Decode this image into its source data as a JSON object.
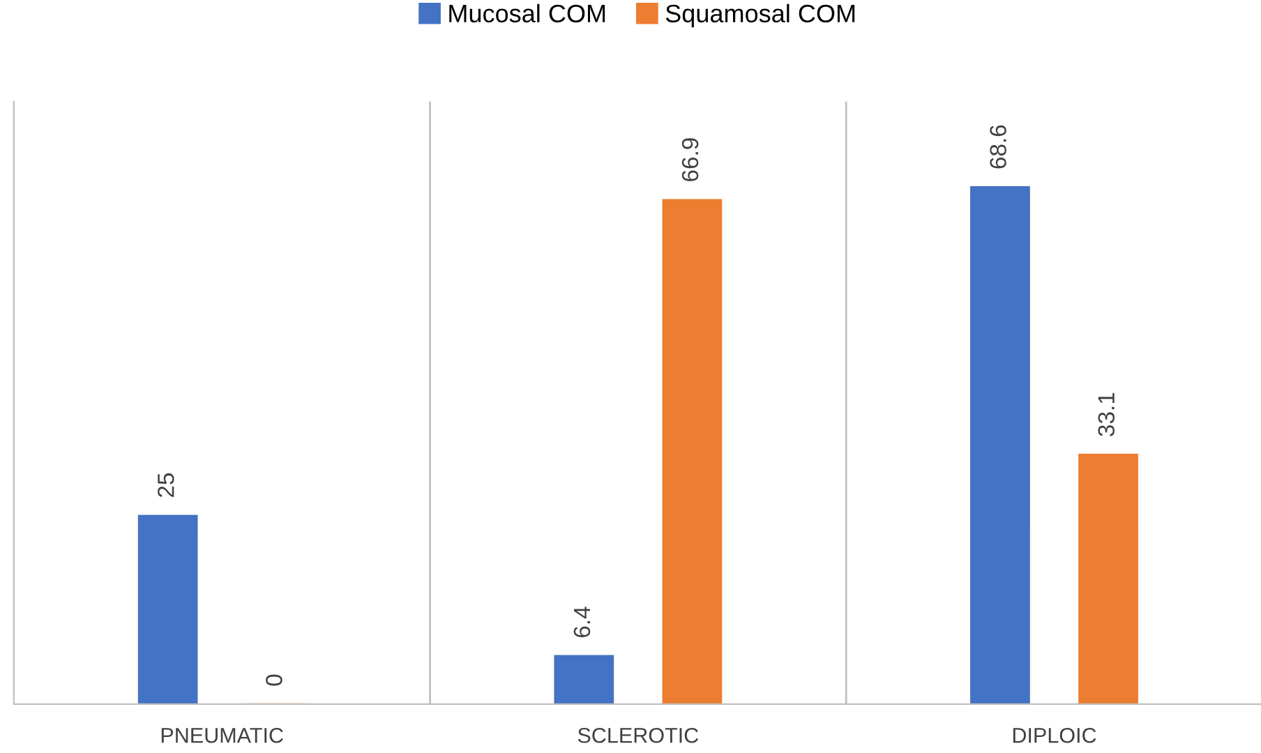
{
  "chart_data": {
    "type": "bar",
    "categories": [
      "PNEUMATIC",
      "SCLEROTIC",
      "DIPLOIC"
    ],
    "series": [
      {
        "name": "Mucosal COM",
        "color": "#4472c4",
        "values": [
          25,
          6.4,
          68.6
        ]
      },
      {
        "name": "Squamosal COM",
        "color": "#ed7d31",
        "values": [
          0,
          66.9,
          33.1
        ]
      }
    ],
    "data_labels": true,
    "legend": "top",
    "grid": "x",
    "tick_labels": "x"
  }
}
